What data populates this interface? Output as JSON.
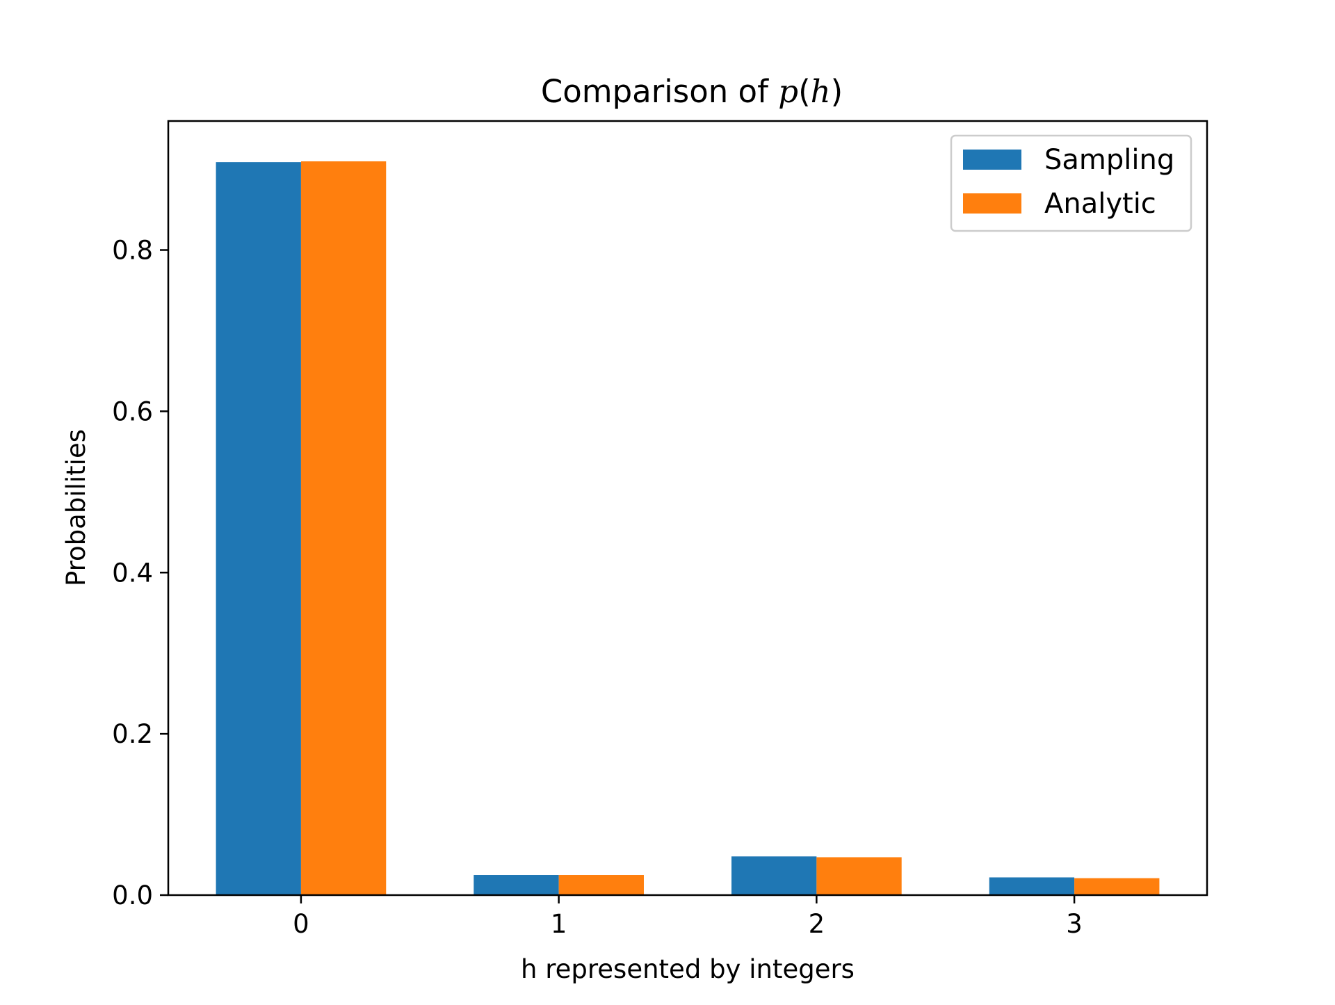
{
  "chart_data": {
    "type": "bar",
    "title": {
      "prefix": "Comparison of ",
      "var_p": "p",
      "paren_open": "(",
      "var_h": "h",
      "paren_close": ")"
    },
    "xlabel": "h represented by integers",
    "ylabel": "Probabilities",
    "categories": [
      "0",
      "1",
      "2",
      "3"
    ],
    "ylim": [
      0,
      0.96
    ],
    "yticks": [
      "0.0",
      "0.2",
      "0.4",
      "0.6",
      "0.8"
    ],
    "grid": false,
    "legend_position": "top-right",
    "series": [
      {
        "name": "Sampling",
        "color": "#1f77b4",
        "values": [
          0.909,
          0.025,
          0.048,
          0.022
        ]
      },
      {
        "name": "Analytic",
        "color": "#ff7f0e",
        "values": [
          0.91,
          0.025,
          0.047,
          0.021
        ]
      }
    ]
  }
}
